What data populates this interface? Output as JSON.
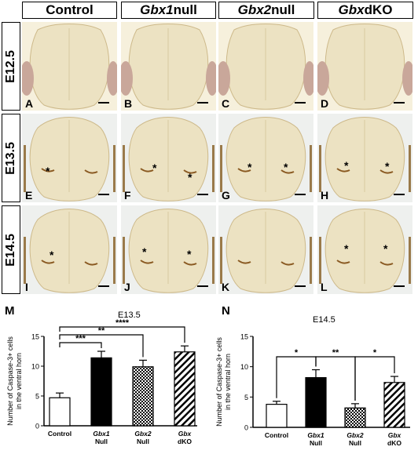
{
  "columns": [
    {
      "italic": "",
      "rest": "Control"
    },
    {
      "italic": "Gbx1",
      "rest": " null"
    },
    {
      "italic": "Gbx2",
      "rest": " null"
    },
    {
      "italic": "Gbx",
      "rest": " dKO"
    }
  ],
  "rows": [
    "E12.5",
    "E13.5",
    "E14.5"
  ],
  "panel_labels": [
    "A",
    "B",
    "C",
    "D",
    "E",
    "F",
    "G",
    "H",
    "I",
    "J",
    "K",
    "L"
  ],
  "asterisk": "*",
  "colors": {
    "tissue_bg": "#f3ecd6",
    "tissue": "#ece2c2",
    "stain": "#8a5a22",
    "bar_black": "#000000",
    "bar_white": "#ffffff"
  },
  "chart_data": [
    {
      "type": "bar",
      "panel_letter": "M",
      "title": "E13.5",
      "ylabel": "Number of Caspase-3+ cells\nin the ventral horn",
      "ylim": [
        0,
        15
      ],
      "yticks": [
        0,
        5,
        10,
        15
      ],
      "categories": [
        {
          "line1": "Control",
          "line2": "",
          "italic": false
        },
        {
          "line1": "Gbx1",
          "line2": "Null",
          "italic": true
        },
        {
          "line1": "Gbx2",
          "line2": "Null",
          "italic": true
        },
        {
          "line1": "Gbx",
          "line2": "dKO",
          "italic": true
        }
      ],
      "values": [
        4.7,
        11.4,
        9.9,
        12.4
      ],
      "errors": [
        0.8,
        1.1,
        1.1,
        1.0
      ],
      "fills": [
        "white",
        "black",
        "checker",
        "hatch"
      ],
      "significance": [
        {
          "from": 0,
          "to": 1,
          "label": "***"
        },
        {
          "from": 0,
          "to": 2,
          "label": "**"
        },
        {
          "from": 0,
          "to": 3,
          "label": "****"
        }
      ]
    },
    {
      "type": "bar",
      "panel_letter": "N",
      "title": "E14.5",
      "ylabel": "Number of Caspase-3+ cells\nin the ventral horn",
      "ylim": [
        0,
        15
      ],
      "yticks": [
        0,
        5,
        10,
        15
      ],
      "categories": [
        {
          "line1": "Control",
          "line2": "",
          "italic": false
        },
        {
          "line1": "Gbx1",
          "line2": "Null",
          "italic": true
        },
        {
          "line1": "Gbx2",
          "line2": "Null",
          "italic": true
        },
        {
          "line1": "Gbx",
          "line2": "dKO",
          "italic": true
        }
      ],
      "values": [
        3.8,
        8.2,
        3.2,
        7.4
      ],
      "errors": [
        0.5,
        1.3,
        0.7,
        1.0
      ],
      "fills": [
        "white",
        "black",
        "checker",
        "hatch"
      ],
      "significance": [
        {
          "from": 0,
          "to": 1,
          "label": "*"
        },
        {
          "from": 1,
          "to": 2,
          "label": "**"
        },
        {
          "from": 2,
          "to": 3,
          "label": "*"
        }
      ]
    }
  ]
}
